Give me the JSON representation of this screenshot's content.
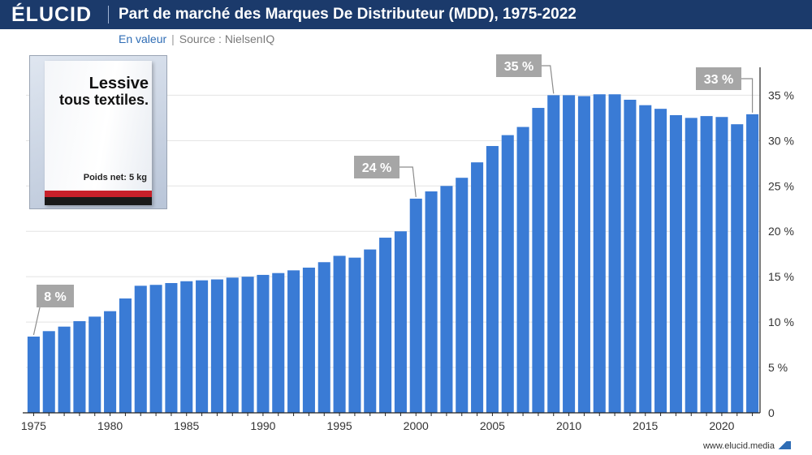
{
  "header": {
    "logo": "ÉLUCID",
    "title": "Part de marché des Marques De Distributeur (MDD), 1975-2022"
  },
  "subtitle": {
    "unit": "En valeur",
    "separator": "|",
    "source": "Source : NielsenIQ"
  },
  "product_image": {
    "label_line1": "Lessive",
    "label_line2": "tous textiles.",
    "weight": "Poids net: 5 kg"
  },
  "footer": {
    "website": "www.elucid.media"
  },
  "colors": {
    "header_bg": "#1b3a6b",
    "bar": "#3a7bd5",
    "annotation_bg": "#a6a6a6",
    "grid": "#e3e3e3"
  },
  "chart_data": {
    "type": "bar",
    "years": [
      1975,
      1976,
      1977,
      1978,
      1979,
      1980,
      1981,
      1982,
      1983,
      1984,
      1985,
      1986,
      1987,
      1988,
      1989,
      1990,
      1991,
      1992,
      1993,
      1994,
      1995,
      1996,
      1997,
      1998,
      1999,
      2000,
      2001,
      2002,
      2003,
      2004,
      2005,
      2006,
      2007,
      2008,
      2009,
      2010,
      2011,
      2012,
      2013,
      2014,
      2015,
      2016,
      2017,
      2018,
      2019,
      2020,
      2021,
      2022
    ],
    "values": [
      8.4,
      9.0,
      9.5,
      10.1,
      10.6,
      11.2,
      12.6,
      14.0,
      14.1,
      14.3,
      14.5,
      14.6,
      14.7,
      14.9,
      15.0,
      15.2,
      15.4,
      15.7,
      16.0,
      16.6,
      17.3,
      17.1,
      18.0,
      19.3,
      20.0,
      23.6,
      24.4,
      25.0,
      25.9,
      27.6,
      29.4,
      30.6,
      31.5,
      33.6,
      35.0,
      35.0,
      34.9,
      35.1,
      35.1,
      34.5,
      33.9,
      33.5,
      32.8,
      32.5,
      32.7,
      32.6,
      31.8,
      32.9
    ],
    "x_ticks": [
      "1975",
      "1980",
      "1985",
      "1990",
      "1995",
      "2000",
      "2005",
      "2010",
      "2015",
      "2020"
    ],
    "y_ticks": [
      "0",
      "5 %",
      "10 %",
      "15 %",
      "20 %",
      "25 %",
      "30 %",
      "35 %"
    ],
    "ylim": [
      0,
      37
    ],
    "grid": true,
    "y_axis_side": "right",
    "annotations": [
      {
        "year": 1975,
        "text": "8 %"
      },
      {
        "year": 2000,
        "text": "24 %"
      },
      {
        "year": 2009,
        "text": "35 %"
      },
      {
        "year": 2022,
        "text": "33 %"
      }
    ]
  }
}
